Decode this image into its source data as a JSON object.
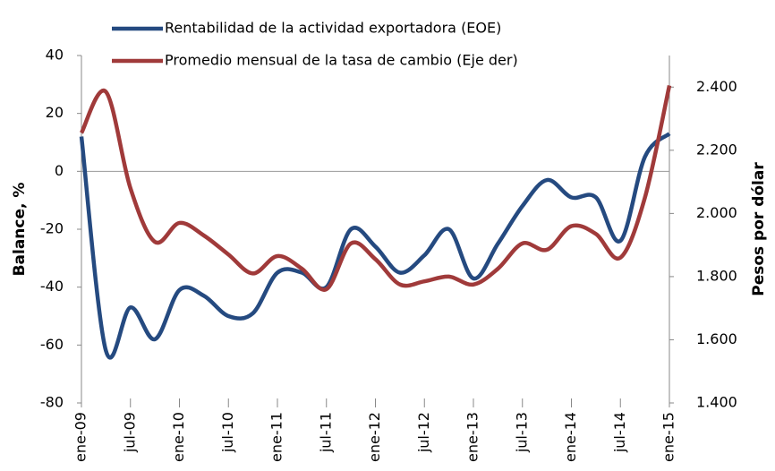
{
  "chart_data": {
    "type": "line",
    "categories": [
      "ene-09",
      null,
      "jul-09",
      null,
      "ene-10",
      null,
      "jul-10",
      null,
      "ene-11",
      null,
      "jul-11",
      null,
      "ene-12",
      null,
      "jul-12",
      null,
      "ene-13",
      null,
      "jul-13",
      null,
      "ene-14",
      null,
      "jul-14",
      null,
      "ene-15"
    ],
    "y_label": "Balance, %",
    "y2_label": "Pesos por dólar",
    "ylim": [
      -80,
      40
    ],
    "yticks": [
      40,
      20,
      0,
      -20,
      -40,
      -60,
      -80
    ],
    "y2lim": [
      1400,
      2500
    ],
    "y2ticks": [
      {
        "value": 2400,
        "label": "2.400"
      },
      {
        "value": 2200,
        "label": "2.200"
      },
      {
        "value": 2000,
        "label": "2.000"
      },
      {
        "value": 1800,
        "label": "1.800"
      },
      {
        "value": 1600,
        "label": "1.600"
      },
      {
        "value": 1400,
        "label": "1.400"
      }
    ],
    "zero_line": true,
    "series": [
      {
        "name": "Rentabilidad de la actividad exportadora (EOE)",
        "color": "#254a80",
        "values": [
          12,
          -62,
          -47,
          -58,
          -41,
          -43,
          -50,
          -49,
          -35,
          -35,
          -40,
          -20,
          -26,
          -35,
          -29,
          -20,
          -37,
          -25,
          -12,
          -3,
          -9,
          -9,
          -24,
          5,
          13
        ]
      },
      {
        "name": "Promedio mensual de la tasa de cambio  (Eje der)",
        "color": "#a03a3a",
        "axis": "y2",
        "values": [
          2255,
          2385,
          2080,
          1910,
          1970,
          1930,
          1870,
          1810,
          1865,
          1825,
          1760,
          1905,
          1855,
          1775,
          1785,
          1800,
          1775,
          1825,
          1905,
          1885,
          1960,
          1935,
          1860,
          2050,
          2405
        ]
      }
    ]
  }
}
